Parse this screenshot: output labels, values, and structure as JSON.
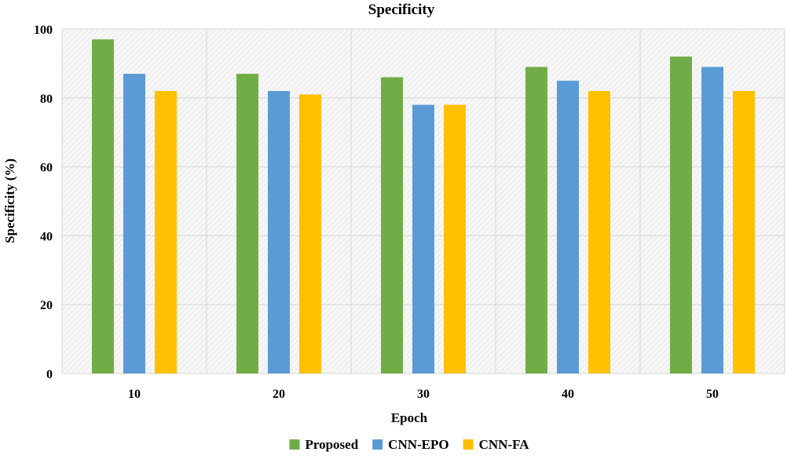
{
  "chart_data": {
    "type": "bar",
    "title": "Specificity",
    "xlabel": "Epoch",
    "ylabel": "Specificity (%)",
    "categories": [
      "10",
      "20",
      "30",
      "40",
      "50"
    ],
    "ylim": [
      0,
      100
    ],
    "yticks": [
      0,
      20,
      40,
      60,
      80,
      100
    ],
    "grid": true,
    "legend_position": "bottom",
    "series": [
      {
        "name": "Proposed",
        "color": "#70ad47",
        "values": [
          97,
          87,
          86,
          89,
          92
        ]
      },
      {
        "name": "CNN-EPO",
        "color": "#5b9bd5",
        "values": [
          87,
          82,
          78,
          85,
          89
        ]
      },
      {
        "name": "CNN-FA",
        "color": "#ffc000",
        "values": [
          82,
          81,
          78,
          82,
          82
        ]
      }
    ]
  }
}
